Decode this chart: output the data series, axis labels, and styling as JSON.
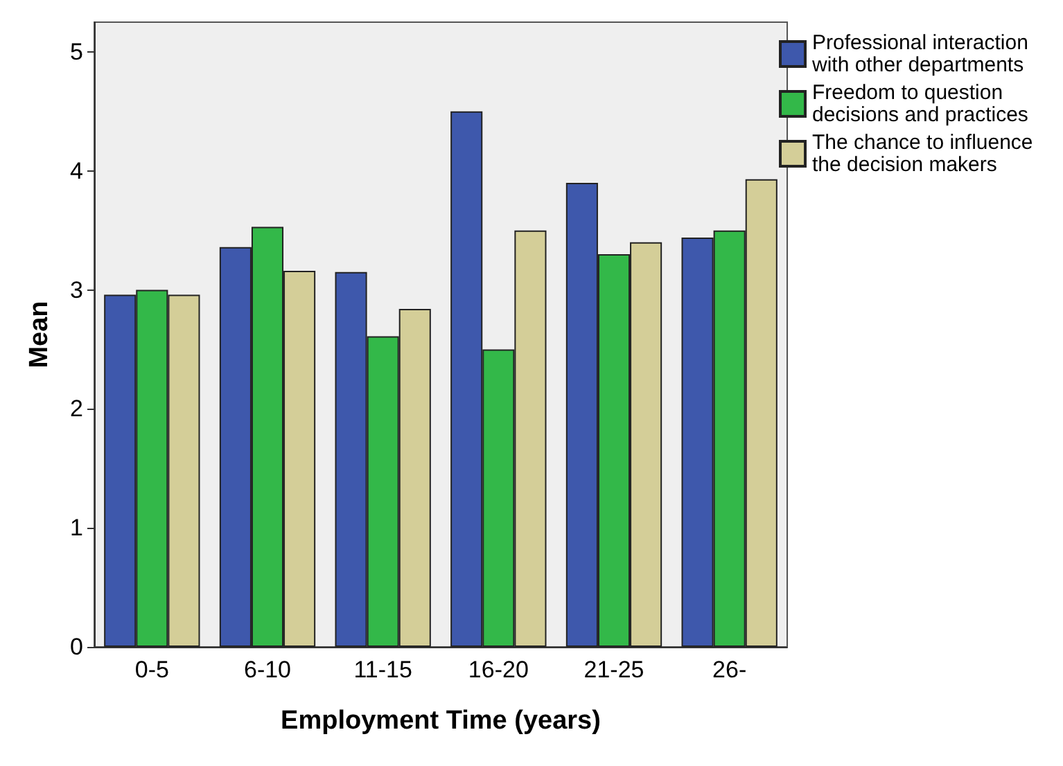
{
  "chart_data": {
    "type": "bar",
    "xlabel": "Employment Time (years)",
    "ylabel": "Mean",
    "categories": [
      "0-5",
      "6-10",
      "11-15",
      "16-20",
      "21-25",
      "26-"
    ],
    "series": [
      {
        "name": "Professional interaction with other departments",
        "color": "#3e58ac",
        "values": [
          2.96,
          3.36,
          3.15,
          4.5,
          3.9,
          3.44
        ]
      },
      {
        "name": "Freedom to question decisions and practices",
        "color": "#33b849",
        "values": [
          3.0,
          3.53,
          2.61,
          2.5,
          3.3,
          3.5
        ]
      },
      {
        "name": "The chance to influence the decision makers",
        "color": "#d4ce98",
        "values": [
          2.96,
          3.16,
          2.84,
          3.5,
          3.4,
          3.93
        ]
      }
    ],
    "ylim": [
      0,
      5.25
    ],
    "yticks": [
      0,
      1,
      2,
      3,
      4,
      5
    ],
    "grid": false,
    "legend": "right"
  }
}
